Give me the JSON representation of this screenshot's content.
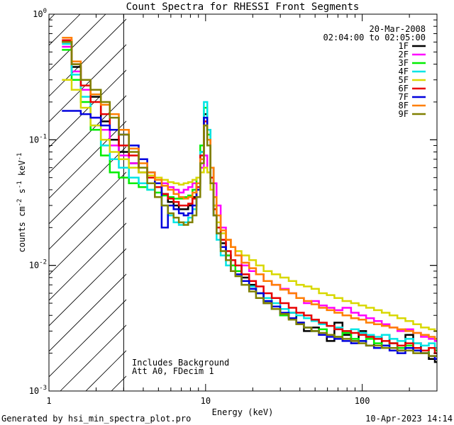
{
  "chart_data": {
    "type": "line",
    "title": "Count Spectra for RHESSI Front Segments",
    "xlabel": "Energy (keV)",
    "ylabel": "counts cm",
    "ylabel_parts": {
      "sup1": "-2",
      "mid": " s",
      "sup2": "-1",
      "end": " keV",
      "sup3": "-1"
    },
    "x_scale": "log",
    "y_scale": "log",
    "xlim": [
      1,
      300
    ],
    "ylim": [
      0.001,
      1
    ],
    "x_ticks": [
      {
        "value": 1,
        "label": "1"
      },
      {
        "value": 10,
        "label": "10"
      },
      {
        "value": 100,
        "label": "100"
      }
    ],
    "y_ticks": [
      {
        "value": 0.001,
        "base": "10",
        "exp": "-3"
      },
      {
        "value": 0.01,
        "base": "10",
        "exp": "-2"
      },
      {
        "value": 0.1,
        "base": "10",
        "exp": "-1"
      },
      {
        "value": 1,
        "base": "10",
        "exp": "0"
      }
    ],
    "date": "20-Mar-2008",
    "time_range": "02:04:00 to 02:05:00",
    "annotations": [
      "Includes Background",
      "Att A0, FDecim 1"
    ],
    "hatched_region_upper_keV": 3,
    "series": [
      {
        "name": "1F",
        "color": "#000000",
        "x": [
          1.3,
          1.5,
          1.7,
          2.0,
          2.3,
          2.6,
          3.0,
          3.5,
          4.0,
          4.5,
          5.0,
          5.5,
          6.0,
          6.5,
          7.0,
          7.5,
          8.0,
          8.5,
          9.0,
          9.5,
          10.0,
          10.5,
          11.0,
          11.5,
          12,
          13,
          14,
          15,
          16,
          18,
          20,
          22,
          25,
          28,
          32,
          36,
          40,
          45,
          50,
          56,
          63,
          70,
          80,
          90,
          100,
          112,
          126,
          141,
          158,
          178,
          200,
          224,
          251,
          282,
          300
        ],
        "values": [
          0.6,
          0.38,
          0.3,
          0.22,
          0.14,
          0.1,
          0.08,
          0.065,
          0.055,
          0.05,
          0.045,
          0.037,
          0.032,
          0.03,
          0.028,
          0.028,
          0.03,
          0.035,
          0.045,
          0.08,
          0.16,
          0.12,
          0.06,
          0.03,
          0.02,
          0.015,
          0.012,
          0.011,
          0.01,
          0.008,
          0.007,
          0.006,
          0.005,
          0.0045,
          0.004,
          0.0042,
          0.0035,
          0.003,
          0.0032,
          0.0028,
          0.0025,
          0.0035,
          0.0028,
          0.0025,
          0.003,
          0.0027,
          0.0022,
          0.0028,
          0.0024,
          0.0021,
          0.0028,
          0.0024,
          0.002,
          0.0018,
          0.0017
        ]
      },
      {
        "name": "2F",
        "color": "#ff00ff",
        "x": [
          1.3,
          1.5,
          1.7,
          2.0,
          2.3,
          2.6,
          3.0,
          3.5,
          4.0,
          4.5,
          5.0,
          5.5,
          6.0,
          6.5,
          7.0,
          7.5,
          8.0,
          8.5,
          9.0,
          9.5,
          10.0,
          10.5,
          11.0,
          11.5,
          12,
          13,
          14,
          15,
          16,
          18,
          20,
          22,
          25,
          28,
          32,
          36,
          40,
          45,
          50,
          56,
          63,
          70,
          80,
          90,
          100,
          112,
          126,
          141,
          158,
          178,
          200,
          224,
          251,
          282,
          300
        ],
        "values": [
          0.55,
          0.35,
          0.25,
          0.15,
          0.12,
          0.09,
          0.075,
          0.065,
          0.06,
          0.055,
          0.05,
          0.045,
          0.042,
          0.04,
          0.038,
          0.04,
          0.042,
          0.045,
          0.05,
          0.06,
          0.075,
          0.055,
          0.05,
          0.045,
          0.03,
          0.02,
          0.016,
          0.014,
          0.012,
          0.01,
          0.009,
          0.0085,
          0.0075,
          0.007,
          0.0065,
          0.006,
          0.0055,
          0.005,
          0.0052,
          0.0048,
          0.0046,
          0.0044,
          0.0046,
          0.0042,
          0.004,
          0.0038,
          0.0036,
          0.0034,
          0.0032,
          0.003,
          0.0031,
          0.0029,
          0.0027,
          0.0026,
          0.0025
        ]
      },
      {
        "name": "3F",
        "color": "#00ee00",
        "x": [
          1.3,
          1.5,
          1.7,
          2.0,
          2.3,
          2.6,
          3.0,
          3.5,
          4.0,
          4.5,
          5.0,
          5.5,
          6.0,
          6.5,
          7.0,
          7.5,
          8.0,
          8.5,
          9.0,
          9.5,
          10.0,
          10.5,
          11.0,
          11.5,
          12,
          13,
          14,
          15,
          16,
          18,
          20,
          22,
          25,
          28,
          32,
          36,
          40,
          45,
          50,
          56,
          63,
          70,
          80,
          90,
          100,
          112,
          126,
          141,
          158,
          178,
          200,
          224,
          251,
          282,
          300
        ],
        "values": [
          0.52,
          0.3,
          0.2,
          0.12,
          0.075,
          0.055,
          0.05,
          0.045,
          0.042,
          0.04,
          0.038,
          0.036,
          0.035,
          0.034,
          0.034,
          0.035,
          0.036,
          0.04,
          0.05,
          0.09,
          0.18,
          0.11,
          0.05,
          0.025,
          0.018,
          0.014,
          0.012,
          0.01,
          0.009,
          0.0075,
          0.0065,
          0.006,
          0.0052,
          0.0045,
          0.004,
          0.0038,
          0.0034,
          0.0032,
          0.003,
          0.0031,
          0.0028,
          0.0027,
          0.0029,
          0.0026,
          0.0025,
          0.0026,
          0.0024,
          0.0023,
          0.0024,
          0.0022,
          0.0023,
          0.0021,
          0.002,
          0.0022,
          0.0021
        ]
      },
      {
        "name": "4F",
        "color": "#00e5e5",
        "x": [
          1.3,
          1.5,
          1.7,
          2.0,
          2.3,
          2.6,
          3.0,
          3.5,
          4.0,
          4.5,
          5.0,
          5.5,
          6.0,
          6.5,
          7.0,
          7.5,
          8.0,
          8.5,
          9.0,
          9.5,
          10.0,
          10.5,
          11.0,
          11.5,
          12,
          13,
          14,
          15,
          16,
          18,
          20,
          22,
          25,
          28,
          32,
          36,
          40,
          45,
          50,
          56,
          63,
          70,
          80,
          90,
          100,
          112,
          126,
          141,
          158,
          178,
          200,
          224,
          251,
          282,
          300
        ],
        "values": [
          0.58,
          0.33,
          0.22,
          0.13,
          0.09,
          0.07,
          0.06,
          0.05,
          0.045,
          0.04,
          0.035,
          0.03,
          0.025,
          0.022,
          0.021,
          0.022,
          0.024,
          0.028,
          0.04,
          0.08,
          0.2,
          0.12,
          0.05,
          0.025,
          0.016,
          0.012,
          0.01,
          0.009,
          0.0085,
          0.0075,
          0.0068,
          0.006,
          0.0055,
          0.005,
          0.0045,
          0.0042,
          0.004,
          0.0038,
          0.0036,
          0.0034,
          0.0033,
          0.0032,
          0.003,
          0.0031,
          0.0029,
          0.0028,
          0.0027,
          0.0028,
          0.0026,
          0.0025,
          0.0026,
          0.0024,
          0.0023,
          0.0024,
          0.0022
        ]
      },
      {
        "name": "5F",
        "color": "#d8d800",
        "x": [
          1.3,
          1.5,
          1.7,
          2.0,
          2.3,
          2.6,
          3.0,
          3.5,
          4.0,
          4.5,
          5.0,
          5.5,
          6.0,
          6.5,
          7.0,
          7.5,
          8.0,
          8.5,
          9.0,
          9.5,
          10.0,
          10.5,
          11.0,
          11.5,
          12,
          13,
          14,
          15,
          16,
          18,
          20,
          22,
          25,
          28,
          32,
          36,
          40,
          45,
          50,
          56,
          63,
          70,
          80,
          90,
          100,
          112,
          126,
          141,
          158,
          178,
          200,
          224,
          251,
          282,
          300
        ],
        "values": [
          0.3,
          0.25,
          0.18,
          0.13,
          0.1,
          0.08,
          0.07,
          0.06,
          0.055,
          0.052,
          0.05,
          0.048,
          0.046,
          0.045,
          0.044,
          0.045,
          0.046,
          0.048,
          0.05,
          0.055,
          0.06,
          0.055,
          0.04,
          0.03,
          0.022,
          0.018,
          0.016,
          0.014,
          0.013,
          0.012,
          0.011,
          0.01,
          0.009,
          0.0085,
          0.008,
          0.0075,
          0.007,
          0.0068,
          0.0065,
          0.006,
          0.0058,
          0.0055,
          0.0052,
          0.005,
          0.0048,
          0.0046,
          0.0044,
          0.0042,
          0.004,
          0.0038,
          0.0036,
          0.0034,
          0.0032,
          0.0031,
          0.003
        ]
      },
      {
        "name": "6F",
        "color": "#e80000",
        "x": [
          1.3,
          1.5,
          1.7,
          2.0,
          2.3,
          2.6,
          3.0,
          3.5,
          4.0,
          4.5,
          5.0,
          5.5,
          6.0,
          6.5,
          7.0,
          7.5,
          8.0,
          8.5,
          9.0,
          9.5,
          10.0,
          10.5,
          11.0,
          11.5,
          12,
          13,
          14,
          15,
          16,
          18,
          20,
          22,
          25,
          28,
          32,
          36,
          40,
          45,
          50,
          56,
          63,
          70,
          80,
          90,
          100,
          112,
          126,
          141,
          158,
          178,
          200,
          224,
          251,
          282,
          300
        ],
        "values": [
          0.62,
          0.4,
          0.27,
          0.2,
          0.16,
          0.12,
          0.09,
          0.075,
          0.06,
          0.05,
          0.042,
          0.037,
          0.034,
          0.032,
          0.03,
          0.03,
          0.031,
          0.034,
          0.042,
          0.075,
          0.14,
          0.1,
          0.05,
          0.028,
          0.02,
          0.016,
          0.013,
          0.011,
          0.01,
          0.0085,
          0.0075,
          0.0068,
          0.006,
          0.0055,
          0.005,
          0.0046,
          0.0042,
          0.004,
          0.0037,
          0.0035,
          0.0033,
          0.0031,
          0.003,
          0.0029,
          0.0028,
          0.0027,
          0.0026,
          0.0025,
          0.0024,
          0.0023,
          0.0024,
          0.0022,
          0.0021,
          0.0022,
          0.002
        ]
      },
      {
        "name": "7F",
        "color": "#0000dd",
        "x": [
          1.3,
          1.5,
          1.7,
          2.0,
          2.3,
          2.6,
          3.0,
          3.5,
          4.0,
          4.5,
          5.0,
          5.5,
          6.0,
          6.5,
          7.0,
          7.5,
          8.0,
          8.5,
          9.0,
          9.5,
          10.0,
          10.5,
          11.0,
          11.5,
          12,
          13,
          14,
          15,
          16,
          18,
          20,
          22,
          25,
          28,
          32,
          36,
          40,
          45,
          50,
          56,
          63,
          70,
          80,
          90,
          100,
          112,
          126,
          141,
          158,
          178,
          200,
          224,
          251,
          282,
          300
        ],
        "values": [
          0.17,
          0.17,
          0.16,
          0.15,
          0.13,
          0.12,
          0.11,
          0.09,
          0.07,
          0.055,
          0.045,
          0.02,
          0.03,
          0.028,
          0.026,
          0.025,
          0.026,
          0.03,
          0.04,
          0.07,
          0.15,
          0.1,
          0.045,
          0.025,
          0.018,
          0.014,
          0.011,
          0.009,
          0.0085,
          0.0075,
          0.0065,
          0.006,
          0.0052,
          0.0047,
          0.0042,
          0.0038,
          0.0035,
          0.0032,
          0.003,
          0.0028,
          0.0027,
          0.0026,
          0.0025,
          0.0024,
          0.0025,
          0.0023,
          0.0022,
          0.0023,
          0.0021,
          0.002,
          0.0022,
          0.0021,
          0.002,
          0.0019,
          0.0018
        ]
      },
      {
        "name": "8F",
        "color": "#ff7f00",
        "x": [
          1.3,
          1.5,
          1.7,
          2.0,
          2.3,
          2.6,
          3.0,
          3.5,
          4.0,
          4.5,
          5.0,
          5.5,
          6.0,
          6.5,
          7.0,
          7.5,
          8.0,
          8.5,
          9.0,
          9.5,
          10.0,
          10.5,
          11.0,
          11.5,
          12,
          13,
          14,
          15,
          16,
          18,
          20,
          22,
          25,
          28,
          32,
          36,
          40,
          45,
          50,
          56,
          63,
          70,
          80,
          90,
          100,
          112,
          126,
          141,
          158,
          178,
          200,
          224,
          251,
          282,
          300
        ],
        "values": [
          0.65,
          0.42,
          0.3,
          0.23,
          0.19,
          0.16,
          0.12,
          0.085,
          0.065,
          0.055,
          0.048,
          0.043,
          0.04,
          0.037,
          0.035,
          0.034,
          0.035,
          0.038,
          0.045,
          0.07,
          0.13,
          0.1,
          0.06,
          0.035,
          0.025,
          0.019,
          0.016,
          0.014,
          0.012,
          0.0105,
          0.0095,
          0.0085,
          0.0075,
          0.007,
          0.0064,
          0.006,
          0.0055,
          0.0052,
          0.0049,
          0.0046,
          0.0044,
          0.0042,
          0.004,
          0.0038,
          0.0037,
          0.0035,
          0.0034,
          0.0033,
          0.0032,
          0.0031,
          0.003,
          0.0029,
          0.0028,
          0.0027,
          0.0026
        ]
      },
      {
        "name": "9F",
        "color": "#808000",
        "x": [
          1.3,
          1.5,
          1.7,
          2.0,
          2.3,
          2.6,
          3.0,
          3.5,
          4.0,
          4.5,
          5.0,
          5.5,
          6.0,
          6.5,
          7.0,
          7.5,
          8.0,
          8.5,
          9.0,
          9.5,
          10.0,
          10.5,
          11.0,
          11.5,
          12,
          13,
          14,
          15,
          16,
          18,
          20,
          22,
          25,
          28,
          32,
          36,
          40,
          45,
          50,
          56,
          63,
          70,
          80,
          90,
          100,
          112,
          126,
          141,
          158,
          178,
          200,
          224,
          251,
          282,
          300
        ],
        "values": [
          0.6,
          0.4,
          0.3,
          0.25,
          0.2,
          0.15,
          0.11,
          0.08,
          0.06,
          0.045,
          0.035,
          0.03,
          0.026,
          0.024,
          0.022,
          0.021,
          0.022,
          0.025,
          0.035,
          0.065,
          0.13,
          0.09,
          0.045,
          0.025,
          0.018,
          0.013,
          0.011,
          0.009,
          0.0082,
          0.007,
          0.0062,
          0.0055,
          0.005,
          0.0045,
          0.0041,
          0.0037,
          0.0034,
          0.0032,
          0.003,
          0.0029,
          0.0028,
          0.0027,
          0.0026,
          0.0025,
          0.0024,
          0.0023,
          0.0023,
          0.0022,
          0.0022,
          0.0021,
          0.0021,
          0.002,
          0.002,
          0.0019,
          0.0019
        ]
      }
    ]
  },
  "footer": {
    "generated_by": "Generated by hsi_min_spectra_plot.pro",
    "timestamp": "10-Apr-2023 14:14"
  }
}
